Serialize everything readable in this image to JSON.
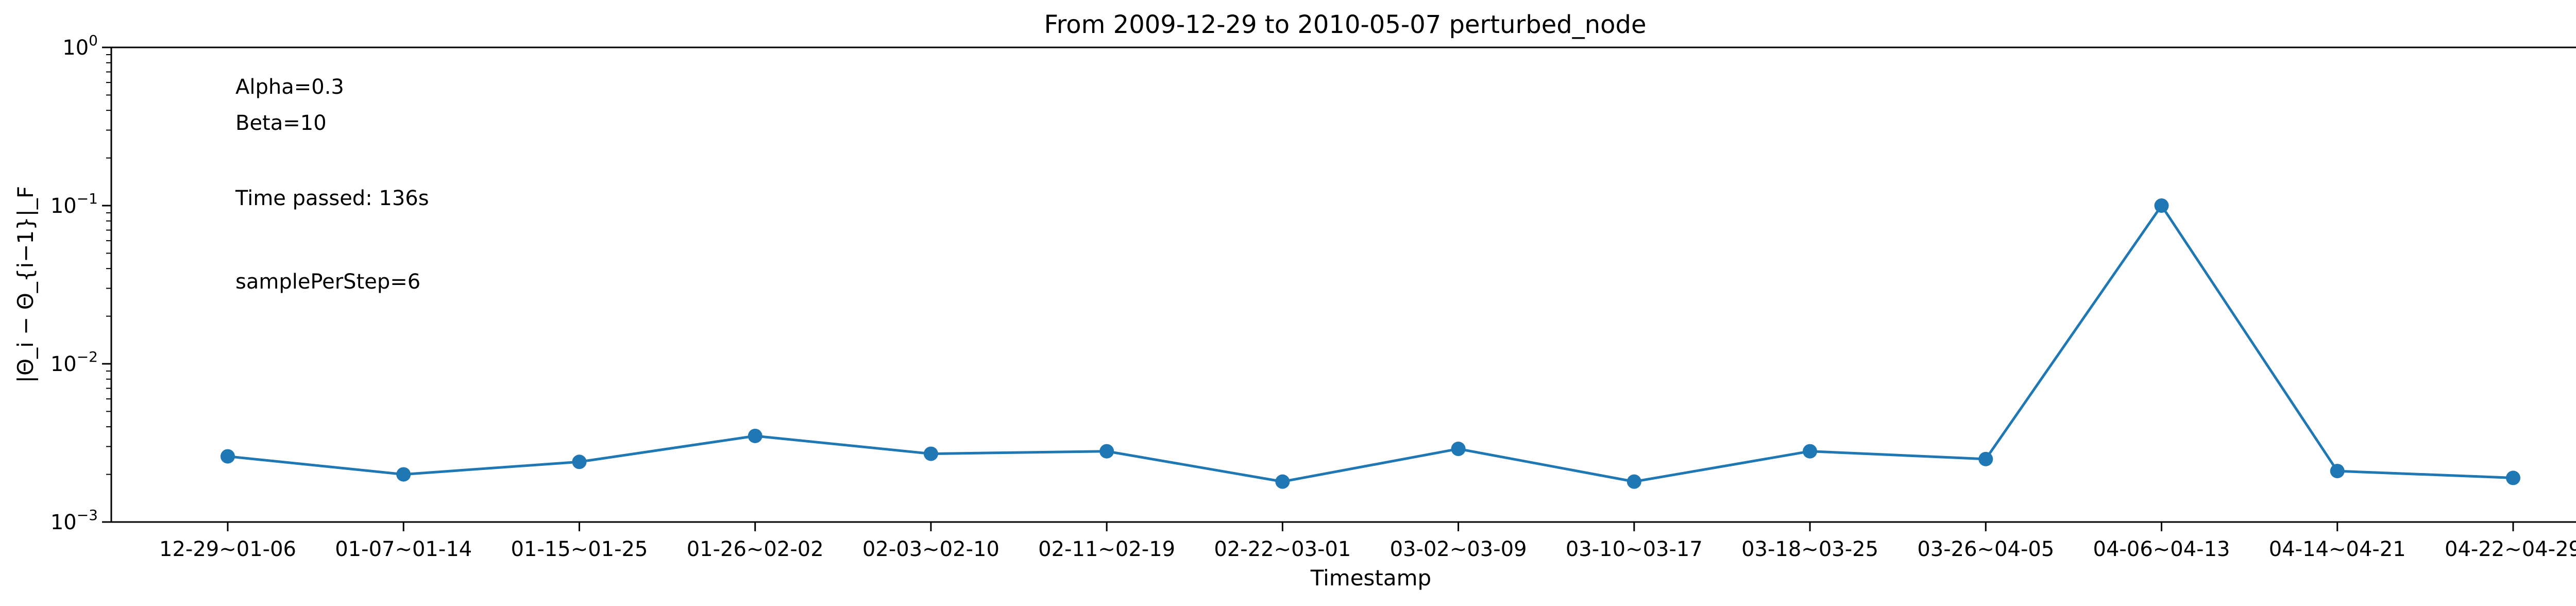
{
  "chart_data": {
    "type": "line",
    "title": "From 2009-12-29 to 2010-05-07 perturbed_node",
    "xlabel": "Timestamp",
    "ylabel": "|Θ_i − Θ_{i−1}|_F",
    "yscale": "log",
    "ylim": [
      0.001,
      1
    ],
    "ytick_labels": [
      {
        "base": "10",
        "exp": "−3",
        "value": 0.001
      },
      {
        "base": "10",
        "exp": "−2",
        "value": 0.01
      },
      {
        "base": "10",
        "exp": "−1",
        "value": 0.1
      },
      {
        "base": "10",
        "exp": "0",
        "value": 1
      }
    ],
    "categories": [
      "12-29~01-06",
      "01-07~01-14",
      "01-15~01-25",
      "01-26~02-02",
      "02-03~02-10",
      "02-11~02-19",
      "02-22~03-01",
      "03-02~03-09",
      "03-10~03-17",
      "03-18~03-25",
      "03-26~04-05",
      "04-06~04-13",
      "04-14~04-21",
      "04-22~04-29"
    ],
    "series": [
      {
        "values": [
          0.0026,
          0.002,
          0.0024,
          0.0035,
          0.0027,
          0.0028,
          0.0018,
          0.0029,
          0.0018,
          0.0028,
          0.0025,
          0.1,
          0.0021,
          0.0019
        ],
        "color": "#1f77b4"
      }
    ],
    "annotations": [
      "Alpha=0.3",
      "Beta=10",
      "Time passed: 136s",
      "samplePerStep=6"
    ],
    "grid": false,
    "legend": "none"
  }
}
